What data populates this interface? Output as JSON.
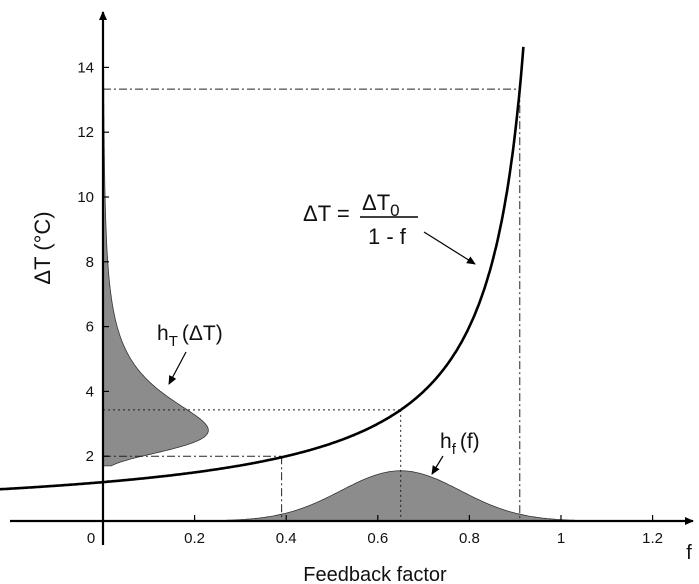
{
  "chart_data": {
    "type": "line",
    "xlabel": "Feedback factor",
    "x_axis_letter": "f",
    "ylabel": "ΔT (°C)",
    "xlim": [
      -0.4,
      1.37
    ],
    "ylim": [
      0,
      15
    ],
    "x_ticks": [
      0,
      0.2,
      0.4,
      0.6,
      0.8,
      1,
      1.2
    ],
    "x_tick_labels": [
      "0",
      "0.2",
      "0.4",
      "0.6",
      "0.8",
      "1",
      "1.2"
    ],
    "y_ticks": [
      2,
      4,
      6,
      8,
      10,
      12,
      14
    ],
    "y_tick_labels": [
      "2",
      "4",
      "6",
      "8",
      "10",
      "12",
      "14"
    ],
    "grid": false,
    "legend": "none",
    "curve": {
      "dT0": 1.2,
      "x": [
        -0.4,
        -0.2,
        0,
        0.2,
        0.3,
        0.4,
        0.5,
        0.6,
        0.65,
        0.7,
        0.75,
        0.8,
        0.83,
        0.86,
        0.88,
        0.9,
        0.91,
        0.92
      ],
      "y": [
        0.86,
        1.0,
        1.2,
        1.5,
        1.71,
        2.0,
        2.4,
        3.0,
        3.43,
        4.0,
        4.8,
        6.0,
        7.06,
        8.57,
        10.0,
        12.0,
        13.33,
        15.0
      ]
    },
    "equation": {
      "lhs": "ΔT =",
      "numerator": "ΔT",
      "numerator_sub": "0",
      "denominator": "1 - f"
    },
    "annotations": {
      "hT_label": "h",
      "hT_sub": "T",
      "hT_arg": "(ΔT)",
      "hf_label": "h",
      "hf_sub": "f",
      "hf_arg": "(f)"
    },
    "h_f": {
      "mean": 0.65,
      "sd": 0.13,
      "peak": 1.55
    },
    "h_T": {
      "mode": 2.9,
      "peak_width": 0.23
    },
    "guides": [
      {
        "f": 0.39,
        "dT": 2.0
      },
      {
        "f": 0.65,
        "dT": 3.43
      },
      {
        "f": 0.91,
        "dT": 13.33
      }
    ]
  }
}
